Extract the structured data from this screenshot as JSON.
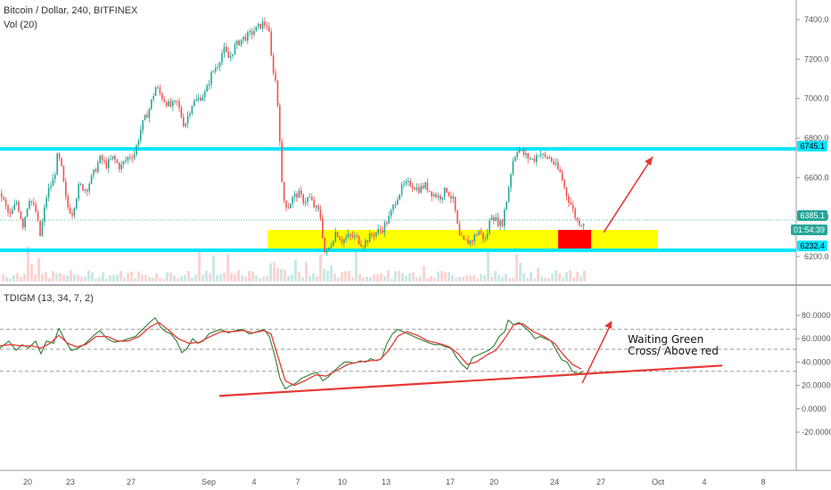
{
  "header": {
    "symbol": "Bitcoin / Dollar, 240, BITFINEX",
    "volume": "Vol (20)",
    "indicator": "TDIGM (13, 34, 7, 2)"
  },
  "price_tags": {
    "upper_level": "6745.1",
    "last_price": "6385.1",
    "countdown": "01:54:39",
    "lower_level": "6232.4"
  },
  "annotation": {
    "line1": "Waiting Green",
    "line2": "Cross/ Above  red"
  },
  "colors": {
    "up_candle": "#26a69a",
    "down_candle": "#ef5350",
    "level_line": "#00e5ff",
    "zone": "#ffff00",
    "box": "#ff0000",
    "arrow": "#e53935",
    "tdi_green": "#2e7d32",
    "tdi_red": "#e53935"
  },
  "chart_data": [
    {
      "type": "candlestick",
      "name": "price",
      "ylim": [
        6150,
        7460
      ],
      "yticks": [
        "7400.0",
        "7200.0",
        "7000.0",
        "6800.0",
        "6600.0",
        "6400.0",
        "6200.0"
      ],
      "xticks": [
        "20",
        "23",
        "27",
        "Sep",
        "4",
        "7",
        "10",
        "13",
        "17",
        "20",
        "24",
        "27",
        "Oct",
        "4",
        "8"
      ],
      "levels": [
        6745.1,
        6232.4
      ],
      "zone": [
        6235,
        6335
      ],
      "close_path": [
        [
          0,
          6520
        ],
        [
          10,
          6400
        ],
        [
          18,
          6480
        ],
        [
          25,
          6360
        ],
        [
          32,
          6500
        ],
        [
          40,
          6420
        ],
        [
          44,
          6300
        ],
        [
          52,
          6520
        ],
        [
          60,
          6600
        ],
        [
          64,
          6720
        ],
        [
          68,
          6650
        ],
        [
          74,
          6460
        ],
        [
          80,
          6420
        ],
        [
          88,
          6560
        ],
        [
          96,
          6540
        ],
        [
          104,
          6620
        ],
        [
          112,
          6700
        ],
        [
          118,
          6660
        ],
        [
          126,
          6700
        ],
        [
          134,
          6650
        ],
        [
          142,
          6700
        ],
        [
          150,
          6720
        ],
        [
          158,
          6860
        ],
        [
          166,
          6940
        ],
        [
          174,
          7060
        ],
        [
          182,
          7000
        ],
        [
          190,
          6960
        ],
        [
          198,
          6980
        ],
        [
          206,
          6860
        ],
        [
          214,
          6970
        ],
        [
          222,
          7000
        ],
        [
          230,
          7030
        ],
        [
          236,
          7120
        ],
        [
          244,
          7180
        ],
        [
          250,
          7250
        ],
        [
          256,
          7200
        ],
        [
          262,
          7260
        ],
        [
          270,
          7300
        ],
        [
          278,
          7320
        ],
        [
          286,
          7350
        ],
        [
          294,
          7380
        ],
        [
          300,
          7370
        ],
        [
          304,
          7180
        ],
        [
          308,
          7100
        ],
        [
          312,
          6900
        ],
        [
          316,
          6500
        ],
        [
          322,
          6450
        ],
        [
          328,
          6500
        ],
        [
          334,
          6520
        ],
        [
          340,
          6480
        ],
        [
          346,
          6500
        ],
        [
          352,
          6450
        ],
        [
          358,
          6420
        ],
        [
          364,
          6200
        ],
        [
          370,
          6260
        ],
        [
          376,
          6330
        ],
        [
          382,
          6280
        ],
        [
          390,
          6300
        ],
        [
          398,
          6300
        ],
        [
          406,
          6260
        ],
        [
          414,
          6300
        ],
        [
          420,
          6320
        ],
        [
          428,
          6340
        ],
        [
          436,
          6400
        ],
        [
          444,
          6500
        ],
        [
          452,
          6560
        ],
        [
          460,
          6570
        ],
        [
          468,
          6540
        ],
        [
          476,
          6560
        ],
        [
          484,
          6520
        ],
        [
          492,
          6500
        ],
        [
          500,
          6540
        ],
        [
          508,
          6480
        ],
        [
          514,
          6300
        ],
        [
          520,
          6270
        ],
        [
          528,
          6280
        ],
        [
          536,
          6330
        ],
        [
          544,
          6280
        ],
        [
          550,
          6420
        ],
        [
          556,
          6380
        ],
        [
          562,
          6360
        ],
        [
          568,
          6500
        ],
        [
          574,
          6680
        ],
        [
          580,
          6750
        ],
        [
          586,
          6720
        ],
        [
          592,
          6700
        ],
        [
          598,
          6690
        ],
        [
          604,
          6730
        ],
        [
          610,
          6700
        ],
        [
          616,
          6700
        ],
        [
          622,
          6660
        ],
        [
          628,
          6620
        ],
        [
          634,
          6520
        ],
        [
          640,
          6460
        ],
        [
          646,
          6380
        ],
        [
          652,
          6370
        ],
        [
          656,
          6385
        ]
      ]
    },
    {
      "type": "bar",
      "name": "Vol (20)"
    },
    {
      "type": "line",
      "name": "TDIGM (13, 34, 7, 2)",
      "ylim": [
        -30,
        95
      ],
      "yticks": [
        "80.0000",
        "60.0000",
        "40.0000",
        "20.0000",
        "0.0000",
        "-20.0000"
      ],
      "bands": [
        68,
        51,
        32
      ],
      "green": [
        [
          0,
          52
        ],
        [
          10,
          58
        ],
        [
          18,
          50
        ],
        [
          25,
          55
        ],
        [
          32,
          52
        ],
        [
          40,
          58
        ],
        [
          46,
          47
        ],
        [
          52,
          58
        ],
        [
          60,
          56
        ],
        [
          66,
          69
        ],
        [
          72,
          60
        ],
        [
          80,
          50
        ],
        [
          88,
          52
        ],
        [
          96,
          56
        ],
        [
          104,
          62
        ],
        [
          112,
          67
        ],
        [
          120,
          60
        ],
        [
          128,
          57
        ],
        [
          136,
          58
        ],
        [
          144,
          60
        ],
        [
          152,
          62
        ],
        [
          160,
          68
        ],
        [
          168,
          74
        ],
        [
          174,
          78
        ],
        [
          180,
          70
        ],
        [
          186,
          66
        ],
        [
          192,
          64
        ],
        [
          198,
          58
        ],
        [
          204,
          48
        ],
        [
          210,
          52
        ],
        [
          216,
          60
        ],
        [
          222,
          56
        ],
        [
          228,
          58
        ],
        [
          234,
          64
        ],
        [
          240,
          66
        ],
        [
          248,
          68
        ],
        [
          256,
          65
        ],
        [
          264,
          67
        ],
        [
          272,
          68
        ],
        [
          280,
          64
        ],
        [
          288,
          66
        ],
        [
          296,
          68
        ],
        [
          302,
          62
        ],
        [
          308,
          46
        ],
        [
          314,
          26
        ],
        [
          320,
          17
        ],
        [
          326,
          20
        ],
        [
          332,
          22
        ],
        [
          338,
          26
        ],
        [
          344,
          28
        ],
        [
          350,
          30
        ],
        [
          356,
          31
        ],
        [
          362,
          24
        ],
        [
          368,
          27
        ],
        [
          374,
          32
        ],
        [
          380,
          36
        ],
        [
          386,
          40
        ],
        [
          392,
          40
        ],
        [
          398,
          39
        ],
        [
          404,
          41
        ],
        [
          410,
          40
        ],
        [
          416,
          43
        ],
        [
          422,
          41
        ],
        [
          428,
          43
        ],
        [
          434,
          56
        ],
        [
          440,
          64
        ],
        [
          446,
          68
        ],
        [
          452,
          66
        ],
        [
          458,
          64
        ],
        [
          464,
          62
        ],
        [
          470,
          60
        ],
        [
          476,
          58
        ],
        [
          482,
          56
        ],
        [
          488,
          55
        ],
        [
          494,
          55
        ],
        [
          500,
          53
        ],
        [
          506,
          52
        ],
        [
          512,
          44
        ],
        [
          518,
          38
        ],
        [
          524,
          34
        ],
        [
          530,
          44
        ],
        [
          536,
          46
        ],
        [
          542,
          48
        ],
        [
          548,
          50
        ],
        [
          554,
          54
        ],
        [
          560,
          62
        ],
        [
          566,
          66
        ],
        [
          570,
          76
        ],
        [
          576,
          72
        ],
        [
          582,
          74
        ],
        [
          588,
          70
        ],
        [
          594,
          66
        ],
        [
          600,
          60
        ],
        [
          606,
          62
        ],
        [
          612,
          60
        ],
        [
          618,
          58
        ],
        [
          624,
          50
        ],
        [
          630,
          42
        ],
        [
          636,
          40
        ],
        [
          642,
          32
        ],
        [
          648,
          30
        ],
        [
          654,
          32
        ]
      ],
      "red": [
        [
          0,
          54
        ],
        [
          12,
          55
        ],
        [
          24,
          54
        ],
        [
          36,
          54
        ],
        [
          46,
          52
        ],
        [
          56,
          56
        ],
        [
          66,
          63
        ],
        [
          76,
          56
        ],
        [
          86,
          53
        ],
        [
          96,
          55
        ],
        [
          108,
          62
        ],
        [
          120,
          62
        ],
        [
          132,
          58
        ],
        [
          144,
          58
        ],
        [
          156,
          62
        ],
        [
          168,
          70
        ],
        [
          178,
          74
        ],
        [
          188,
          68
        ],
        [
          200,
          60
        ],
        [
          212,
          56
        ],
        [
          224,
          57
        ],
        [
          236,
          62
        ],
        [
          248,
          66
        ],
        [
          260,
          66
        ],
        [
          272,
          67
        ],
        [
          284,
          65
        ],
        [
          296,
          67
        ],
        [
          304,
          64
        ],
        [
          312,
          44
        ],
        [
          320,
          24
        ],
        [
          330,
          20
        ],
        [
          342,
          24
        ],
        [
          354,
          29
        ],
        [
          366,
          28
        ],
        [
          378,
          33
        ],
        [
          390,
          38
        ],
        [
          402,
          40
        ],
        [
          414,
          41
        ],
        [
          426,
          42
        ],
        [
          436,
          50
        ],
        [
          446,
          62
        ],
        [
          456,
          66
        ],
        [
          468,
          63
        ],
        [
          480,
          58
        ],
        [
          492,
          56
        ],
        [
          504,
          53
        ],
        [
          514,
          47
        ],
        [
          524,
          38
        ],
        [
          534,
          40
        ],
        [
          546,
          46
        ],
        [
          556,
          50
        ],
        [
          566,
          60
        ],
        [
          576,
          72
        ],
        [
          586,
          73
        ],
        [
          598,
          66
        ],
        [
          610,
          62
        ],
        [
          622,
          56
        ],
        [
          632,
          46
        ],
        [
          642,
          38
        ],
        [
          652,
          34
        ]
      ],
      "trendline": [
        [
          246,
          11
        ],
        [
          810,
          37
        ]
      ]
    }
  ]
}
